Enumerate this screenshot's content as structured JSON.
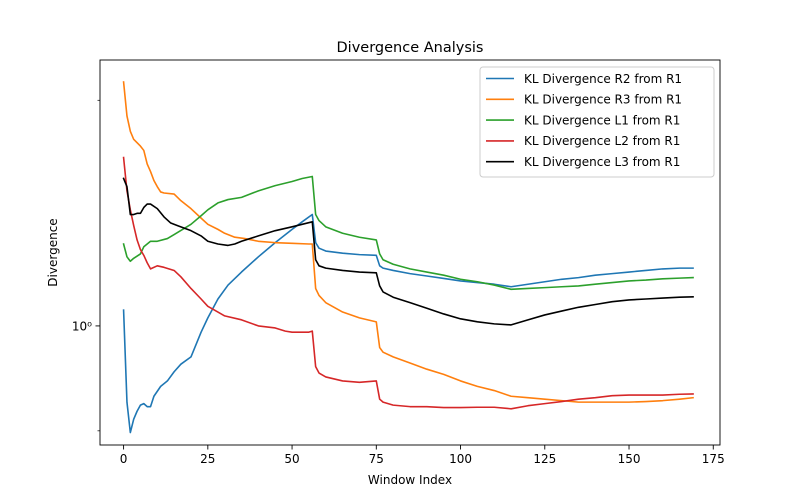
{
  "chart_data": {
    "type": "line",
    "title": "Divergence Analysis",
    "xlabel": "Window Index",
    "ylabel": "Divergence",
    "xlim": [
      -7,
      177
    ],
    "ylim": [
      0.56,
      3.65
    ],
    "yscale": "log",
    "x_ticks": [
      0,
      25,
      50,
      75,
      100,
      125,
      150,
      175
    ],
    "y_ticks": [
      {
        "value": 1.0,
        "label": "10⁰"
      }
    ],
    "y_minor_ticks": [
      0.6,
      3.0
    ],
    "grid": false,
    "legend_position": "top-right",
    "series": [
      {
        "name": "KL Divergence R2 from R1",
        "color": "#1f77b4",
        "points": [
          [
            0,
            1.08
          ],
          [
            1,
            0.69
          ],
          [
            2,
            0.595
          ],
          [
            3,
            0.635
          ],
          [
            4,
            0.66
          ],
          [
            5,
            0.68
          ],
          [
            6,
            0.685
          ],
          [
            7,
            0.675
          ],
          [
            8,
            0.675
          ],
          [
            9,
            0.71
          ],
          [
            11,
            0.745
          ],
          [
            13,
            0.765
          ],
          [
            15,
            0.8
          ],
          [
            17,
            0.83
          ],
          [
            20,
            0.86
          ],
          [
            23,
            0.97
          ],
          [
            25,
            1.04
          ],
          [
            28,
            1.14
          ],
          [
            31,
            1.22
          ],
          [
            35,
            1.3
          ],
          [
            40,
            1.4
          ],
          [
            45,
            1.5
          ],
          [
            50,
            1.6
          ],
          [
            53,
            1.66
          ],
          [
            56,
            1.72
          ],
          [
            57,
            1.5
          ],
          [
            58,
            1.46
          ],
          [
            60,
            1.44
          ],
          [
            65,
            1.425
          ],
          [
            70,
            1.415
          ],
          [
            75,
            1.41
          ],
          [
            76,
            1.34
          ],
          [
            77,
            1.325
          ],
          [
            80,
            1.31
          ],
          [
            85,
            1.29
          ],
          [
            90,
            1.275
          ],
          [
            95,
            1.26
          ],
          [
            100,
            1.245
          ],
          [
            105,
            1.235
          ],
          [
            110,
            1.225
          ],
          [
            115,
            1.21
          ],
          [
            120,
            1.225
          ],
          [
            125,
            1.24
          ],
          [
            130,
            1.255
          ],
          [
            135,
            1.265
          ],
          [
            140,
            1.28
          ],
          [
            145,
            1.29
          ],
          [
            150,
            1.3
          ],
          [
            155,
            1.31
          ],
          [
            160,
            1.32
          ],
          [
            165,
            1.325
          ],
          [
            169,
            1.325
          ]
        ]
      },
      {
        "name": "KL Divergence R3 from R1",
        "color": "#ff7f0e",
        "points": [
          [
            0,
            3.28
          ],
          [
            1,
            2.78
          ],
          [
            2,
            2.58
          ],
          [
            3,
            2.48
          ],
          [
            5,
            2.4
          ],
          [
            6,
            2.35
          ],
          [
            7,
            2.2
          ],
          [
            8,
            2.12
          ],
          [
            9,
            2.03
          ],
          [
            10,
            1.97
          ],
          [
            11,
            1.92
          ],
          [
            12,
            1.91
          ],
          [
            15,
            1.9
          ],
          [
            17,
            1.84
          ],
          [
            20,
            1.77
          ],
          [
            23,
            1.69
          ],
          [
            25,
            1.64
          ],
          [
            28,
            1.6
          ],
          [
            30,
            1.57
          ],
          [
            33,
            1.54
          ],
          [
            36,
            1.53
          ],
          [
            40,
            1.51
          ],
          [
            45,
            1.5
          ],
          [
            50,
            1.495
          ],
          [
            55,
            1.49
          ],
          [
            56,
            1.49
          ],
          [
            57,
            1.2
          ],
          [
            58,
            1.16
          ],
          [
            60,
            1.12
          ],
          [
            65,
            1.07
          ],
          [
            70,
            1.04
          ],
          [
            75,
            1.02
          ],
          [
            76,
            0.9
          ],
          [
            77,
            0.88
          ],
          [
            80,
            0.86
          ],
          [
            85,
            0.835
          ],
          [
            90,
            0.81
          ],
          [
            95,
            0.79
          ],
          [
            100,
            0.765
          ],
          [
            105,
            0.745
          ],
          [
            110,
            0.73
          ],
          [
            115,
            0.71
          ],
          [
            120,
            0.705
          ],
          [
            125,
            0.7
          ],
          [
            130,
            0.695
          ],
          [
            135,
            0.69
          ],
          [
            140,
            0.69
          ],
          [
            145,
            0.69
          ],
          [
            150,
            0.69
          ],
          [
            155,
            0.692
          ],
          [
            160,
            0.695
          ],
          [
            165,
            0.7
          ],
          [
            169,
            0.705
          ]
        ]
      },
      {
        "name": "KL Divergence L1 from R1",
        "color": "#2ca02c",
        "points": [
          [
            0,
            1.49
          ],
          [
            1,
            1.4
          ],
          [
            2,
            1.37
          ],
          [
            3,
            1.39
          ],
          [
            5,
            1.42
          ],
          [
            6,
            1.47
          ],
          [
            8,
            1.51
          ],
          [
            10,
            1.51
          ],
          [
            13,
            1.53
          ],
          [
            15,
            1.56
          ],
          [
            20,
            1.64
          ],
          [
            23,
            1.71
          ],
          [
            25,
            1.76
          ],
          [
            28,
            1.82
          ],
          [
            31,
            1.85
          ],
          [
            35,
            1.87
          ],
          [
            40,
            1.93
          ],
          [
            45,
            1.98
          ],
          [
            50,
            2.02
          ],
          [
            53,
            2.05
          ],
          [
            56,
            2.07
          ],
          [
            57,
            1.72
          ],
          [
            58,
            1.67
          ],
          [
            60,
            1.62
          ],
          [
            65,
            1.57
          ],
          [
            70,
            1.54
          ],
          [
            75,
            1.52
          ],
          [
            76,
            1.42
          ],
          [
            77,
            1.38
          ],
          [
            80,
            1.35
          ],
          [
            85,
            1.32
          ],
          [
            90,
            1.3
          ],
          [
            95,
            1.28
          ],
          [
            100,
            1.255
          ],
          [
            105,
            1.24
          ],
          [
            110,
            1.22
          ],
          [
            115,
            1.195
          ],
          [
            120,
            1.2
          ],
          [
            125,
            1.205
          ],
          [
            130,
            1.21
          ],
          [
            135,
            1.215
          ],
          [
            140,
            1.225
          ],
          [
            145,
            1.235
          ],
          [
            150,
            1.245
          ],
          [
            155,
            1.25
          ],
          [
            160,
            1.258
          ],
          [
            165,
            1.262
          ],
          [
            169,
            1.265
          ]
        ]
      },
      {
        "name": "KL Divergence L2 from R1",
        "color": "#d62728",
        "points": [
          [
            0,
            2.27
          ],
          [
            1,
            1.93
          ],
          [
            2,
            1.76
          ],
          [
            3,
            1.63
          ],
          [
            4,
            1.52
          ],
          [
            5,
            1.45
          ],
          [
            6,
            1.41
          ],
          [
            7,
            1.36
          ],
          [
            8,
            1.32
          ],
          [
            10,
            1.34
          ],
          [
            12,
            1.33
          ],
          [
            15,
            1.31
          ],
          [
            17,
            1.27
          ],
          [
            20,
            1.2
          ],
          [
            23,
            1.14
          ],
          [
            25,
            1.1
          ],
          [
            28,
            1.07
          ],
          [
            30,
            1.05
          ],
          [
            35,
            1.03
          ],
          [
            40,
            1.0
          ],
          [
            45,
            0.99
          ],
          [
            48,
            0.975
          ],
          [
            50,
            0.97
          ],
          [
            55,
            0.97
          ],
          [
            56,
            0.975
          ],
          [
            57,
            0.82
          ],
          [
            58,
            0.795
          ],
          [
            60,
            0.78
          ],
          [
            65,
            0.765
          ],
          [
            70,
            0.76
          ],
          [
            75,
            0.765
          ],
          [
            76,
            0.7
          ],
          [
            77,
            0.69
          ],
          [
            80,
            0.68
          ],
          [
            85,
            0.675
          ],
          [
            90,
            0.675
          ],
          [
            95,
            0.672
          ],
          [
            100,
            0.672
          ],
          [
            105,
            0.673
          ],
          [
            110,
            0.673
          ],
          [
            115,
            0.668
          ],
          [
            120,
            0.678
          ],
          [
            125,
            0.685
          ],
          [
            130,
            0.692
          ],
          [
            135,
            0.7
          ],
          [
            140,
            0.705
          ],
          [
            145,
            0.712
          ],
          [
            150,
            0.714
          ],
          [
            155,
            0.714
          ],
          [
            160,
            0.714
          ],
          [
            165,
            0.717
          ],
          [
            169,
            0.718
          ]
        ]
      },
      {
        "name": "KL Divergence L3 from R1",
        "color": "#000000",
        "points": [
          [
            0,
            2.05
          ],
          [
            1,
            1.97
          ],
          [
            2,
            1.72
          ],
          [
            3,
            1.72
          ],
          [
            4,
            1.73
          ],
          [
            5,
            1.73
          ],
          [
            6,
            1.78
          ],
          [
            7,
            1.81
          ],
          [
            8,
            1.81
          ],
          [
            10,
            1.77
          ],
          [
            12,
            1.7
          ],
          [
            14,
            1.65
          ],
          [
            16,
            1.63
          ],
          [
            20,
            1.59
          ],
          [
            23,
            1.55
          ],
          [
            25,
            1.51
          ],
          [
            28,
            1.49
          ],
          [
            31,
            1.48
          ],
          [
            33,
            1.49
          ],
          [
            35,
            1.51
          ],
          [
            40,
            1.55
          ],
          [
            45,
            1.59
          ],
          [
            50,
            1.62
          ],
          [
            53,
            1.64
          ],
          [
            56,
            1.66
          ],
          [
            57,
            1.38
          ],
          [
            58,
            1.34
          ],
          [
            60,
            1.325
          ],
          [
            65,
            1.31
          ],
          [
            70,
            1.3
          ],
          [
            75,
            1.295
          ],
          [
            76,
            1.215
          ],
          [
            77,
            1.18
          ],
          [
            80,
            1.15
          ],
          [
            85,
            1.12
          ],
          [
            90,
            1.09
          ],
          [
            95,
            1.06
          ],
          [
            100,
            1.035
          ],
          [
            105,
            1.02
          ],
          [
            110,
            1.01
          ],
          [
            115,
            1.005
          ],
          [
            120,
            1.03
          ],
          [
            125,
            1.055
          ],
          [
            130,
            1.075
          ],
          [
            135,
            1.095
          ],
          [
            140,
            1.11
          ],
          [
            145,
            1.125
          ],
          [
            150,
            1.135
          ],
          [
            155,
            1.14
          ],
          [
            160,
            1.145
          ],
          [
            165,
            1.15
          ],
          [
            169,
            1.152
          ]
        ]
      }
    ]
  }
}
